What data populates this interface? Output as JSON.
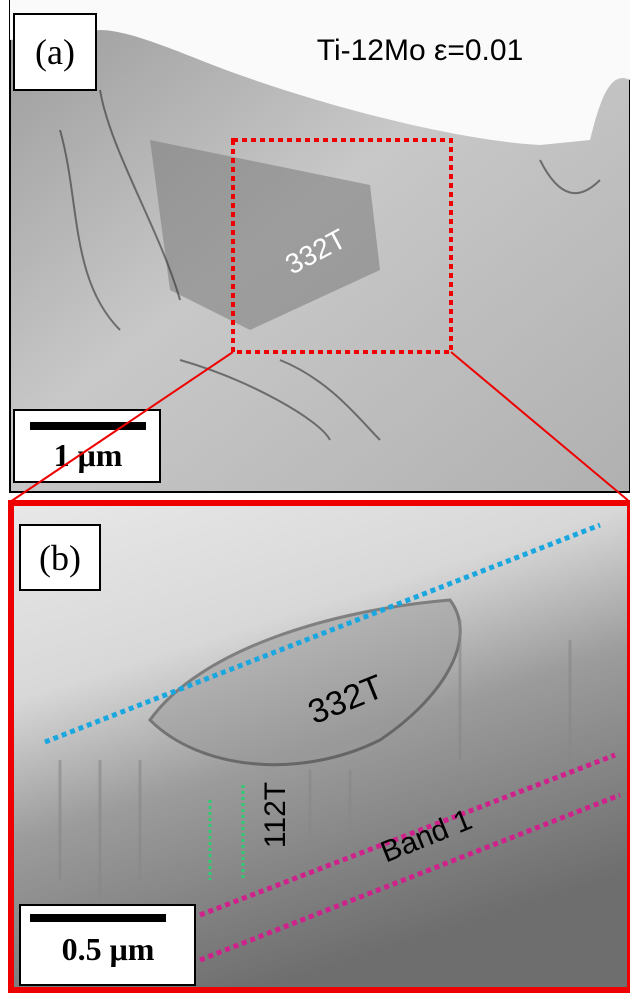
{
  "panels": [
    {
      "label": "(a)",
      "title": "Ti-12Mo ε=0.01",
      "annotations": [
        "332T"
      ],
      "scale_bar": "1 μm"
    },
    {
      "label": "(b)",
      "annotations": [
        "332T",
        "112T",
        "Band 1"
      ],
      "scale_bar": "0.5 μm"
    }
  ]
}
